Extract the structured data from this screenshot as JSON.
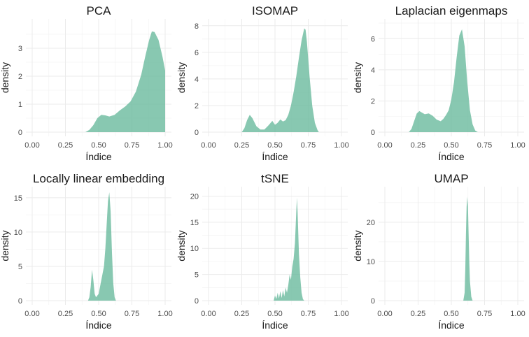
{
  "chart_data": [
    {
      "type": "area",
      "title": "PCA",
      "xlabel": "Índice",
      "ylabel": "density",
      "xlim": [
        0,
        1
      ],
      "ylim": [
        0,
        3.9
      ],
      "xticks": [
        0,
        0.25,
        0.5,
        0.75,
        1
      ],
      "xtick_labels": [
        "0.00",
        "0.25",
        "0.50",
        "0.75",
        "1.00"
      ],
      "yticks": [
        0,
        1,
        2,
        3
      ],
      "grid": true,
      "fill_color": "#66b89b",
      "x": [
        0.4,
        0.43,
        0.46,
        0.49,
        0.52,
        0.55,
        0.58,
        0.62,
        0.66,
        0.7,
        0.74,
        0.78,
        0.82,
        0.85,
        0.88,
        0.9,
        0.92,
        0.95,
        0.98,
        1.0
      ],
      "y": [
        0,
        0.08,
        0.25,
        0.5,
        0.62,
        0.6,
        0.56,
        0.62,
        0.78,
        0.92,
        1.1,
        1.45,
        2.05,
        2.7,
        3.3,
        3.6,
        3.58,
        3.3,
        2.7,
        2.2
      ]
    },
    {
      "type": "area",
      "title": "ISOMAP",
      "xlabel": "Índice",
      "ylabel": "density",
      "xlim": [
        0,
        1
      ],
      "ylim": [
        0,
        8.2
      ],
      "xticks": [
        0,
        0.25,
        0.5,
        0.75,
        1
      ],
      "xtick_labels": [
        "0.00",
        "0.25",
        "0.50",
        "0.75",
        "1.00"
      ],
      "yticks": [
        0,
        2,
        4,
        6,
        8
      ],
      "grid": true,
      "fill_color": "#66b89b",
      "x": [
        0.25,
        0.27,
        0.29,
        0.31,
        0.33,
        0.36,
        0.39,
        0.42,
        0.45,
        0.48,
        0.5,
        0.52,
        0.54,
        0.56,
        0.58,
        0.6,
        0.62,
        0.64,
        0.66,
        0.68,
        0.7,
        0.72,
        0.73,
        0.74,
        0.76,
        0.78,
        0.8,
        0.82,
        0.83
      ],
      "y": [
        0,
        0.3,
        0.9,
        1.3,
        1.05,
        0.45,
        0.2,
        0.2,
        0.5,
        0.85,
        0.55,
        0.7,
        0.95,
        0.8,
        0.9,
        1.3,
        2.0,
        3.0,
        4.2,
        5.6,
        6.9,
        7.8,
        7.7,
        6.8,
        4.2,
        2.0,
        0.7,
        0.15,
        0
      ]
    },
    {
      "type": "area",
      "title": "Laplacian eigenmaps",
      "xlabel": "Índice",
      "ylabel": "density",
      "xlim": [
        0,
        1
      ],
      "ylim": [
        0,
        7
      ],
      "xticks": [
        0,
        0.25,
        0.5,
        0.75,
        1
      ],
      "xtick_labels": [
        "0.00",
        "0.25",
        "0.50",
        "0.75",
        "1.00"
      ],
      "yticks": [
        0,
        2,
        4,
        6
      ],
      "grid": true,
      "fill_color": "#66b89b",
      "x": [
        0.18,
        0.2,
        0.22,
        0.24,
        0.26,
        0.28,
        0.3,
        0.33,
        0.36,
        0.39,
        0.42,
        0.44,
        0.46,
        0.48,
        0.5,
        0.52,
        0.54,
        0.56,
        0.58,
        0.6,
        0.62,
        0.64,
        0.66,
        0.68,
        0.7
      ],
      "y": [
        0,
        0.2,
        0.7,
        1.2,
        1.35,
        1.25,
        1.15,
        1.2,
        1.05,
        0.8,
        0.7,
        0.85,
        1.1,
        1.4,
        2.1,
        3.2,
        4.8,
        6.2,
        6.6,
        5.5,
        3.2,
        1.4,
        0.5,
        0.1,
        0
      ]
    },
    {
      "type": "area",
      "title": "Locally linear embedding",
      "xlabel": "Índice",
      "ylabel": "density",
      "xlim": [
        0,
        1
      ],
      "ylim": [
        0,
        16
      ],
      "xticks": [
        0,
        0.25,
        0.5,
        0.75,
        1
      ],
      "xtick_labels": [
        "0.00",
        "0.25",
        "0.50",
        "0.75",
        "1.00"
      ],
      "yticks": [
        0,
        5,
        10,
        15
      ],
      "grid": true,
      "fill_color": "#66b89b",
      "x": [
        0.42,
        0.43,
        0.44,
        0.45,
        0.46,
        0.47,
        0.48,
        0.5,
        0.52,
        0.54,
        0.55,
        0.56,
        0.57,
        0.58,
        0.59,
        0.6,
        0.61,
        0.62,
        0.63
      ],
      "y": [
        0,
        0.5,
        2.0,
        4.5,
        3.0,
        1.0,
        0.5,
        1.0,
        3.0,
        5.0,
        7.5,
        11.0,
        14.5,
        15.8,
        13.0,
        7.0,
        2.5,
        0.5,
        0
      ]
    },
    {
      "type": "area",
      "title": "tSNE",
      "xlabel": "Índice",
      "ylabel": "density",
      "xlim": [
        0,
        1
      ],
      "ylim": [
        0,
        21
      ],
      "xticks": [
        0,
        0.25,
        0.5,
        0.75,
        1
      ],
      "xtick_labels": [
        "0.00",
        "0.25",
        "0.50",
        "0.75",
        "1.00"
      ],
      "yticks": [
        0,
        5,
        10,
        15,
        20
      ],
      "grid": true,
      "fill_color": "#66b89b",
      "x": [
        0.49,
        0.5,
        0.51,
        0.52,
        0.53,
        0.54,
        0.55,
        0.56,
        0.57,
        0.58,
        0.59,
        0.6,
        0.61,
        0.62,
        0.63,
        0.64,
        0.65,
        0.66,
        0.665,
        0.67,
        0.68,
        0.69,
        0.7,
        0.71,
        0.72
      ],
      "y": [
        0,
        1.0,
        0.3,
        1.5,
        0.4,
        1.8,
        0.5,
        2.0,
        0.8,
        2.5,
        1.5,
        3.0,
        5.0,
        4.0,
        6.5,
        8.0,
        11.0,
        17.0,
        19.7,
        17.0,
        9.0,
        4.5,
        1.5,
        0.3,
        0
      ]
    },
    {
      "type": "area",
      "title": "UMAP",
      "xlabel": "Índice",
      "ylabel": "density",
      "xlim": [
        0,
        1
      ],
      "ylim": [
        0,
        28
      ],
      "xticks": [
        0,
        0.25,
        0.5,
        0.75,
        1
      ],
      "xtick_labels": [
        "0.00",
        "0.25",
        "0.50",
        "0.75",
        "1.00"
      ],
      "yticks": [
        0,
        10,
        20
      ],
      "grid": true,
      "fill_color": "#66b89b",
      "x": [
        0.59,
        0.6,
        0.605,
        0.61,
        0.615,
        0.62,
        0.625,
        0.63,
        0.635,
        0.64,
        0.65,
        0.66
      ],
      "y": [
        0,
        2.0,
        8.0,
        17.0,
        24.0,
        26.5,
        24.0,
        17.0,
        10.0,
        5.0,
        1.0,
        0
      ]
    }
  ]
}
